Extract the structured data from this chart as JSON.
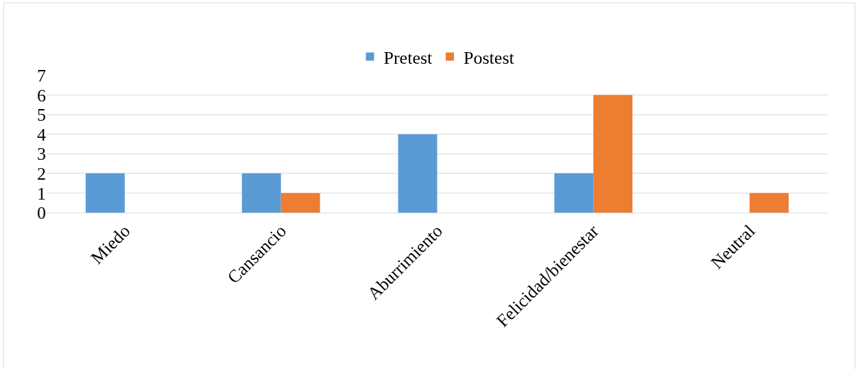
{
  "chart_data": {
    "type": "bar",
    "categories": [
      "Miedo",
      "Cansancio",
      "Aburrimiento",
      "Felicidad/bienestar",
      "Neutral"
    ],
    "series": [
      {
        "name": "Pretest",
        "color": "#5b9bd5",
        "values": [
          2,
          2,
          4,
          2,
          0
        ]
      },
      {
        "name": "Postest",
        "color": "#ed7d31",
        "values": [
          0,
          1,
          0,
          6,
          1
        ]
      }
    ],
    "ylim": [
      0,
      7
    ],
    "yticks": [
      0,
      1,
      2,
      3,
      4,
      5,
      6,
      7
    ],
    "grid": "y",
    "legend": "top"
  }
}
